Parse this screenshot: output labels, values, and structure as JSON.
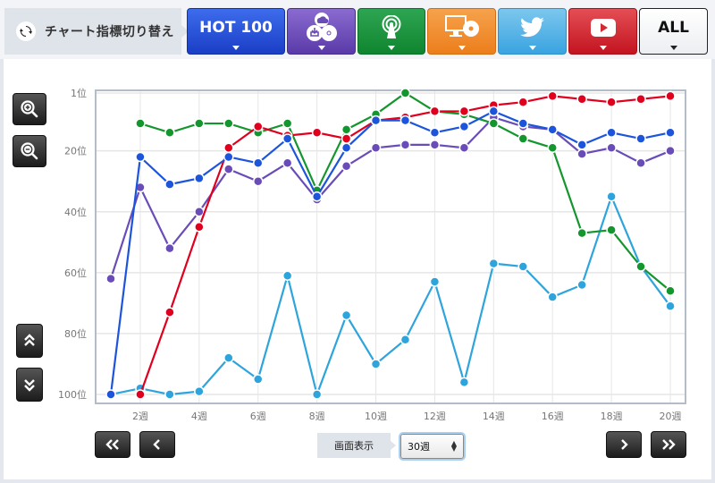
{
  "header": {
    "switch_label": "チャート指標切り替え",
    "switch_icon": "refresh-icon",
    "tabs": [
      {
        "id": "hot100",
        "label": "HOT 100",
        "icon": null,
        "color": "#2a52d8"
      },
      {
        "id": "sales",
        "label": "",
        "icon": "cloud-download-cd-icon",
        "color": "#6e4fbf"
      },
      {
        "id": "radio",
        "label": "",
        "icon": "radio-antenna-icon",
        "color": "#1e9540"
      },
      {
        "id": "pc",
        "label": "",
        "icon": "pc-cd-icon",
        "color": "#f08e30"
      },
      {
        "id": "twitter",
        "label": "",
        "icon": "twitter-icon",
        "color": "#4cb0e6"
      },
      {
        "id": "youtube",
        "label": "",
        "icon": "youtube-icon",
        "color": "#d22a33"
      },
      {
        "id": "all",
        "label": "ALL",
        "icon": null,
        "color": "#ffffff"
      }
    ]
  },
  "controls": {
    "zoom_in": "zoom-in-icon",
    "zoom_out": "zoom-out-icon",
    "scroll_up": "double-chevron-up-icon",
    "scroll_down": "double-chevron-down-icon",
    "first": "«",
    "prev": "‹",
    "next": "›",
    "last": "»",
    "display_label": "画面表示",
    "display_value": "30週"
  },
  "chart_data": {
    "type": "line",
    "title": "",
    "xlabel": "",
    "ylabel": "",
    "y_inverted": true,
    "ylim": [
      1,
      100
    ],
    "yticks": [
      "1位",
      "20位",
      "40位",
      "60位",
      "80位",
      "100位"
    ],
    "xticks": [
      "2週",
      "4週",
      "6週",
      "8週",
      "10週",
      "12週",
      "14週",
      "16週",
      "18週",
      "20週"
    ],
    "x": [
      1,
      2,
      3,
      4,
      5,
      6,
      7,
      8,
      9,
      10,
      11,
      12,
      13,
      14,
      15,
      16,
      17,
      18,
      19,
      20
    ],
    "grid": true,
    "legend": "none",
    "series": [
      {
        "name": "light-blue",
        "color": "#2ea4dc",
        "values": [
          100,
          98,
          100,
          99,
          88,
          95,
          61,
          100,
          74,
          90,
          82,
          63,
          96,
          57,
          58,
          68,
          64,
          35,
          58,
          71
        ]
      },
      {
        "name": "purple",
        "color": "#6a4cb8",
        "values": [
          62,
          32,
          52,
          40,
          26,
          30,
          24,
          36,
          25,
          19,
          18,
          18,
          19,
          9,
          12,
          13,
          21,
          19,
          24,
          20
        ]
      },
      {
        "name": "green",
        "color": "#14962e",
        "values": [
          null,
          11,
          14,
          11,
          11,
          14,
          11,
          33,
          13,
          8,
          1,
          7,
          8,
          11,
          16,
          19,
          47,
          46,
          58,
          66
        ]
      },
      {
        "name": "red",
        "color": "#e0001e",
        "values": [
          null,
          100,
          73,
          45,
          19,
          12,
          15,
          14,
          16,
          10,
          9,
          7,
          7,
          5,
          4,
          2,
          3,
          4,
          3,
          2
        ]
      },
      {
        "name": "blue",
        "color": "#1c55dc",
        "values": [
          100,
          22,
          31,
          29,
          22,
          24,
          16,
          35,
          19,
          10,
          10,
          14,
          12,
          7,
          11,
          13,
          18,
          14,
          16,
          14
        ]
      }
    ]
  }
}
